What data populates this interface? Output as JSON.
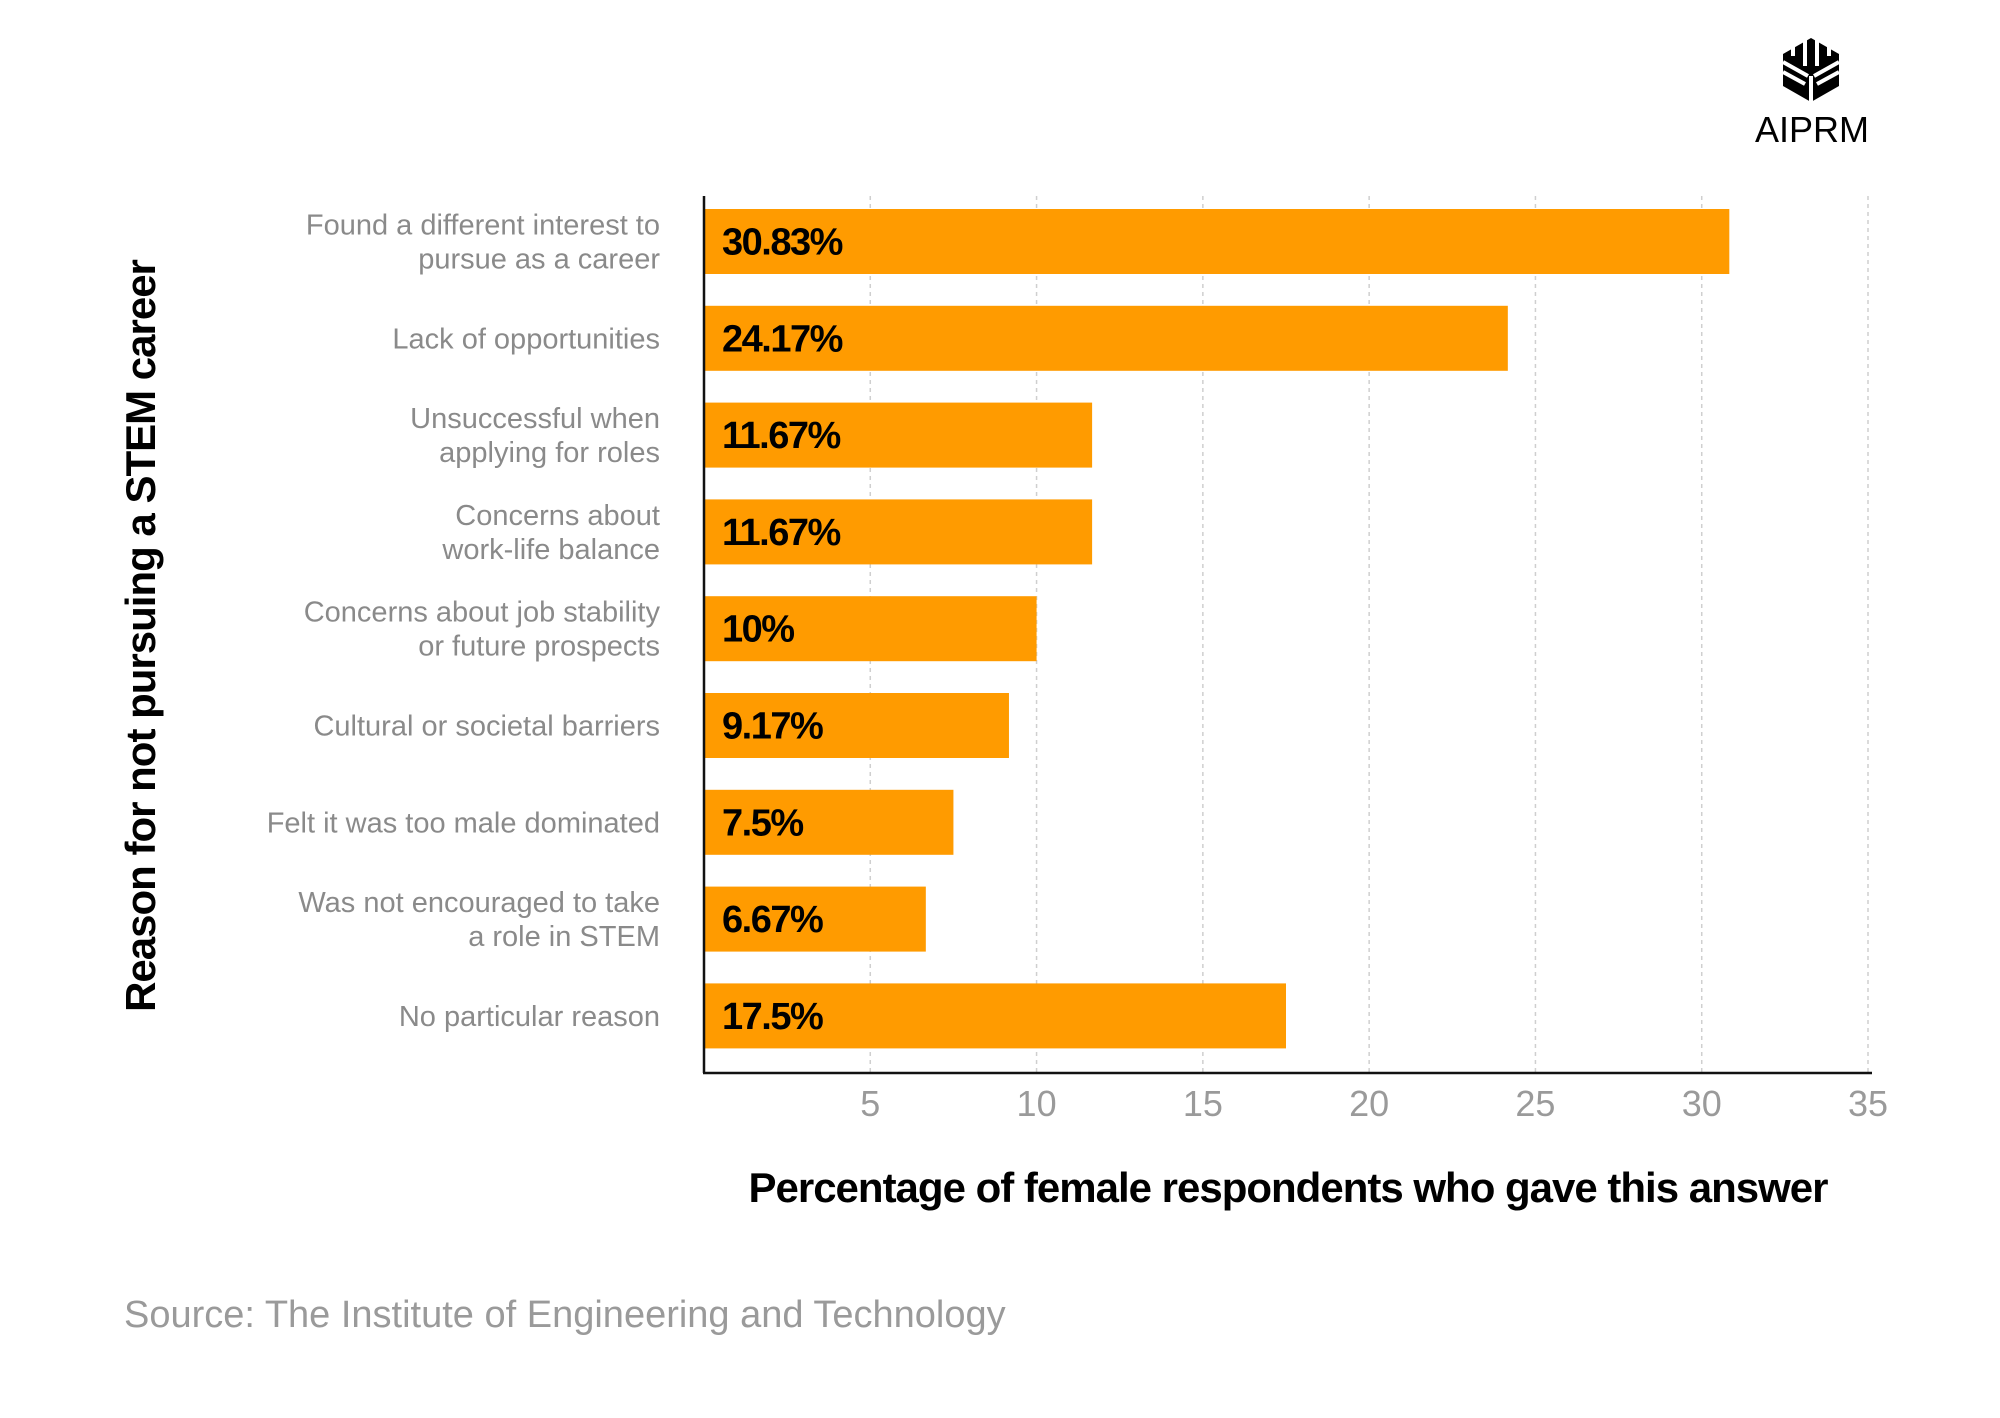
{
  "brand": {
    "name": "AIPRM",
    "icon": "aiprm-cube-logo-icon"
  },
  "source": "Source: The Institute of Engineering and Technology",
  "chart_data": {
    "type": "bar",
    "orientation": "horizontal",
    "categories": [
      [
        "Found a different interest to",
        "pursue as a career"
      ],
      [
        "Lack of opportunities"
      ],
      [
        "Unsuccessful when",
        "applying for roles"
      ],
      [
        "Concerns about",
        "work-life balance"
      ],
      [
        "Concerns about job stability",
        "or future prospects"
      ],
      [
        "Cultural or societal barriers"
      ],
      [
        "Felt it was too male dominated"
      ],
      [
        "Was not encouraged to take",
        "a role in STEM"
      ],
      [
        "No particular reason"
      ]
    ],
    "values": [
      30.83,
      24.17,
      11.67,
      11.67,
      10,
      9.17,
      7.5,
      6.67,
      17.5
    ],
    "data_labels": [
      "30.83%",
      "24.17%",
      "11.67%",
      "11.67%",
      "10%",
      "9.17%",
      "7.5%",
      "6.67%",
      "17.5%"
    ],
    "xlabel": "Percentage of female respondents who gave this answer",
    "ylabel": "Reason for not pursuing a STEM career",
    "xlim": [
      0,
      35
    ],
    "xticks": [
      "5",
      "10",
      "15",
      "20",
      "25",
      "30",
      "35"
    ],
    "grid": "vertical dashed",
    "bar_color": "#FF9B00"
  }
}
